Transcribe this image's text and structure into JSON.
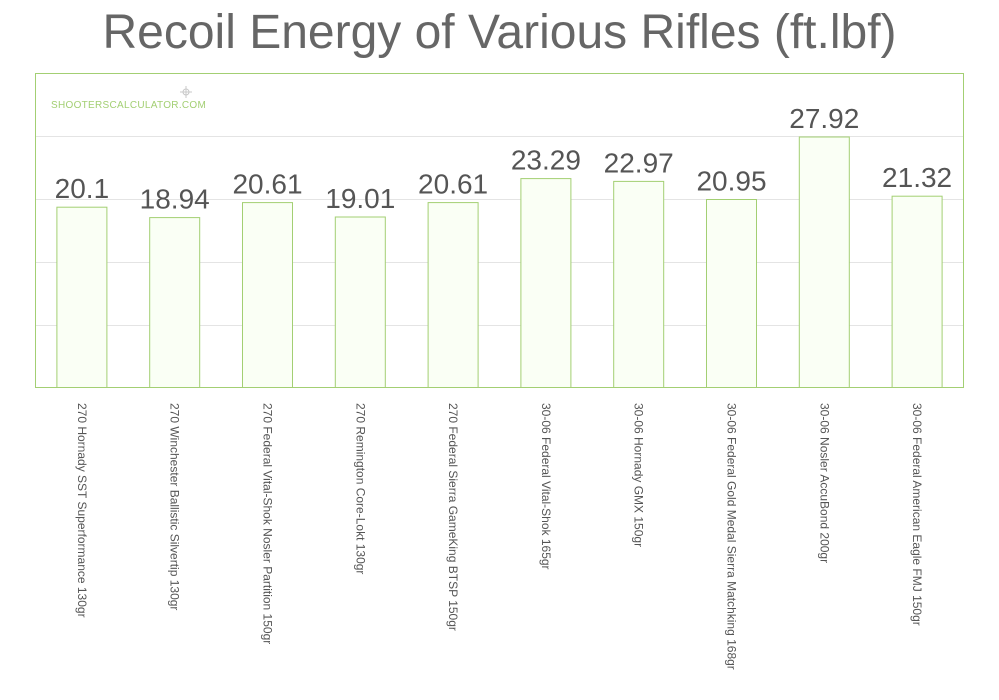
{
  "chart_data": {
    "type": "bar",
    "title": "Recoil Energy of Various Rifles (ft.lbf)",
    "watermark": "SHOOTERSCALCULATOR.COM",
    "categories": [
      "270 Hornady SST Superformance 130gr",
      "270 Winchester Ballistic Silvertip 130gr",
      "270 Federal Vital-Shok Nosler Partition 150gr",
      "270 Remington Core-Lokt 130gr",
      "270 Federal Sierra GameKing BTSP 150gr",
      "30-06 Federal Vital-Shok 165gr",
      "30-06 Hornady GMX 150gr",
      "30-06 Federal Gold Medal Sierra Matchking 168gr",
      "30-06 Nosler AccuBond 200gr",
      "30-06 Federal American Eagle FMJ 150gr"
    ],
    "values": [
      20.1,
      18.94,
      20.61,
      19.01,
      20.61,
      23.29,
      22.97,
      20.95,
      27.92,
      21.32
    ],
    "value_labels": [
      "20.1",
      "18.94",
      "20.61",
      "19.01",
      "20.61",
      "23.29",
      "22.97",
      "20.95",
      "27.92",
      "21.32"
    ],
    "ylim": [
      0,
      35
    ],
    "grid": true,
    "colors": {
      "bar_fill": "#fafff5",
      "bar_stroke": "#a3cf73",
      "frame": "#a3cf73",
      "grid": "#e4e4e4"
    }
  }
}
